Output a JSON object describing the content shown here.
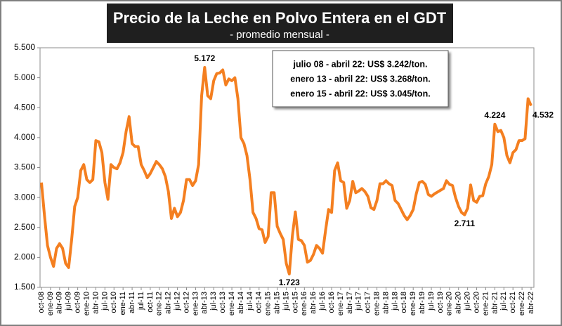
{
  "chart_data": {
    "type": "line",
    "title": "Precio de la Leche en Polvo Entera en el GDT",
    "subtitle": "- promedio mensual -",
    "annotations": [
      "julio 08 - abril 22: US$ 3.242/ton.",
      "enero 13 - abril 22: US$ 3.268/ton.",
      "enero 15 - abril 22: US$ 3.045/ton."
    ],
    "color": "#f47f20",
    "ylim": [
      1500,
      5500
    ],
    "yticks": [
      {
        "value": 1500,
        "label": "1.500"
      },
      {
        "value": 2000,
        "label": "2.000"
      },
      {
        "value": 2500,
        "label": "2.500"
      },
      {
        "value": 3000,
        "label": "3.000"
      },
      {
        "value": 3500,
        "label": "3.500"
      },
      {
        "value": 4000,
        "label": "4.000"
      },
      {
        "value": 4500,
        "label": "4.500"
      },
      {
        "value": 5000,
        "label": "5.000"
      },
      {
        "value": 5500,
        "label": "5.500"
      }
    ],
    "categories": [
      "oct-08",
      null,
      null,
      "ene-09",
      null,
      null,
      "abr-09",
      null,
      null,
      "jul-09",
      null,
      null,
      "oct-09",
      null,
      null,
      "ene-10",
      null,
      null,
      "abr-10",
      null,
      null,
      "jul-10",
      null,
      null,
      "oct-10",
      null,
      null,
      "ene-11",
      null,
      null,
      "abr-11",
      null,
      null,
      "jul-11",
      null,
      null,
      "oct-11",
      null,
      null,
      "ene-12",
      null,
      null,
      "abr-12",
      null,
      null,
      "jul-12",
      null,
      null,
      "oct-12",
      null,
      null,
      "ene-13",
      null,
      null,
      "abr-13",
      null,
      null,
      "jul-13",
      null,
      null,
      "oct-13",
      null,
      null,
      "ene-14",
      null,
      null,
      "abr-14",
      null,
      null,
      "jul-14",
      null,
      null,
      "oct-14",
      null,
      null,
      "ene-15",
      null,
      null,
      "abr-15",
      null,
      null,
      "jul-15",
      null,
      null,
      "oct-15",
      null,
      null,
      "ene-16",
      null,
      null,
      "abr-16",
      null,
      null,
      "jul-16",
      null,
      null,
      "oct-16",
      null,
      null,
      "ene-17",
      null,
      null,
      "abr-17",
      null,
      null,
      "jul-17",
      null,
      null,
      "oct-17",
      null,
      null,
      "ene-18",
      null,
      null,
      "abr-18",
      null,
      null,
      "jul-18",
      null,
      null,
      "oct-18",
      null,
      null,
      "ene-19",
      null,
      null,
      "abr-19",
      null,
      null,
      "jul-19",
      null,
      null,
      "oct-19",
      null,
      null,
      "ene-20",
      null,
      null,
      "abr-20",
      null,
      null,
      "jul-20",
      null,
      null,
      "oct-20",
      null,
      null,
      "ene-21",
      null,
      null,
      "abr-21",
      null,
      null,
      "jul-21",
      null,
      null,
      "oct-21",
      null,
      null,
      "ene-22",
      null,
      null,
      "abr-22"
    ],
    "values": [
      3250,
      2700,
      2200,
      2000,
      1850,
      2150,
      2230,
      2150,
      1900,
      1830,
      2300,
      2850,
      3000,
      3450,
      3550,
      3300,
      3250,
      3300,
      3950,
      3930,
      3750,
      3250,
      2970,
      3550,
      3500,
      3480,
      3580,
      3750,
      4100,
      4350,
      3900,
      3850,
      3850,
      3550,
      3450,
      3330,
      3400,
      3500,
      3600,
      3550,
      3480,
      3350,
      3100,
      2650,
      2820,
      2680,
      2750,
      2950,
      3300,
      3300,
      3200,
      3280,
      3550,
      4700,
      5172,
      4700,
      4650,
      4950,
      5070,
      5080,
      5130,
      4880,
      4980,
      4950,
      5000,
      4650,
      4000,
      3900,
      3700,
      3300,
      2750,
      2650,
      2480,
      2460,
      2250,
      2350,
      3080,
      3080,
      2520,
      2400,
      2300,
      1900,
      1723,
      2350,
      2760,
      2300,
      2280,
      2200,
      1920,
      1950,
      2050,
      2200,
      2150,
      2070,
      2450,
      2800,
      2750,
      3450,
      3580,
      3280,
      3250,
      2820,
      2950,
      3270,
      3080,
      3110,
      3150,
      3100,
      3020,
      2830,
      2800,
      2950,
      3230,
      3230,
      3280,
      3230,
      3200,
      2950,
      2900,
      2800,
      2700,
      2630,
      2700,
      2800,
      3060,
      3250,
      3270,
      3220,
      3050,
      3020,
      3060,
      3090,
      3120,
      3150,
      3280,
      3220,
      3200,
      3000,
      2850,
      2750,
      2711,
      2820,
      3210,
      2950,
      2920,
      3020,
      3030,
      3230,
      3350,
      3550,
      4224,
      4100,
      4120,
      4000,
      3700,
      3580,
      3750,
      3800,
      3950,
      3950,
      3980,
      4650,
      4532
    ],
    "value_labels": [
      null,
      null,
      null,
      null,
      null,
      null,
      null,
      null,
      null,
      null,
      null,
      null,
      null,
      null,
      null,
      null,
      null,
      null,
      null,
      null,
      null,
      null,
      null,
      null,
      null,
      null,
      null,
      null,
      null,
      null,
      null,
      null,
      null,
      null,
      null,
      null,
      null,
      null,
      null,
      null,
      null,
      null,
      null,
      null,
      null,
      null,
      null,
      null,
      null,
      null,
      null,
      null,
      null,
      null,
      "5.172",
      null,
      null,
      null,
      null,
      null,
      null,
      null,
      null,
      null,
      null,
      null,
      null,
      null,
      null,
      null,
      null,
      null,
      null,
      null,
      null,
      null,
      null,
      null,
      null,
      null,
      null,
      null,
      "1.723",
      null,
      null,
      null,
      null,
      null,
      null,
      null,
      null,
      null,
      null,
      null,
      null,
      null,
      null,
      null,
      null,
      null,
      null,
      null,
      null,
      null,
      null,
      null,
      null,
      null,
      null,
      null,
      null,
      null,
      null,
      null,
      null,
      null,
      null,
      null,
      null,
      null,
      null,
      null,
      null,
      null,
      null,
      null,
      null,
      null,
      null,
      null,
      null,
      null,
      null,
      null,
      null,
      null,
      null,
      null,
      null,
      null,
      "2.711",
      null,
      null,
      null,
      null,
      null,
      null,
      null,
      null,
      null,
      "4.224",
      null,
      null,
      null,
      null,
      null,
      null,
      null,
      null,
      null,
      null,
      null,
      "4.532"
    ]
  }
}
